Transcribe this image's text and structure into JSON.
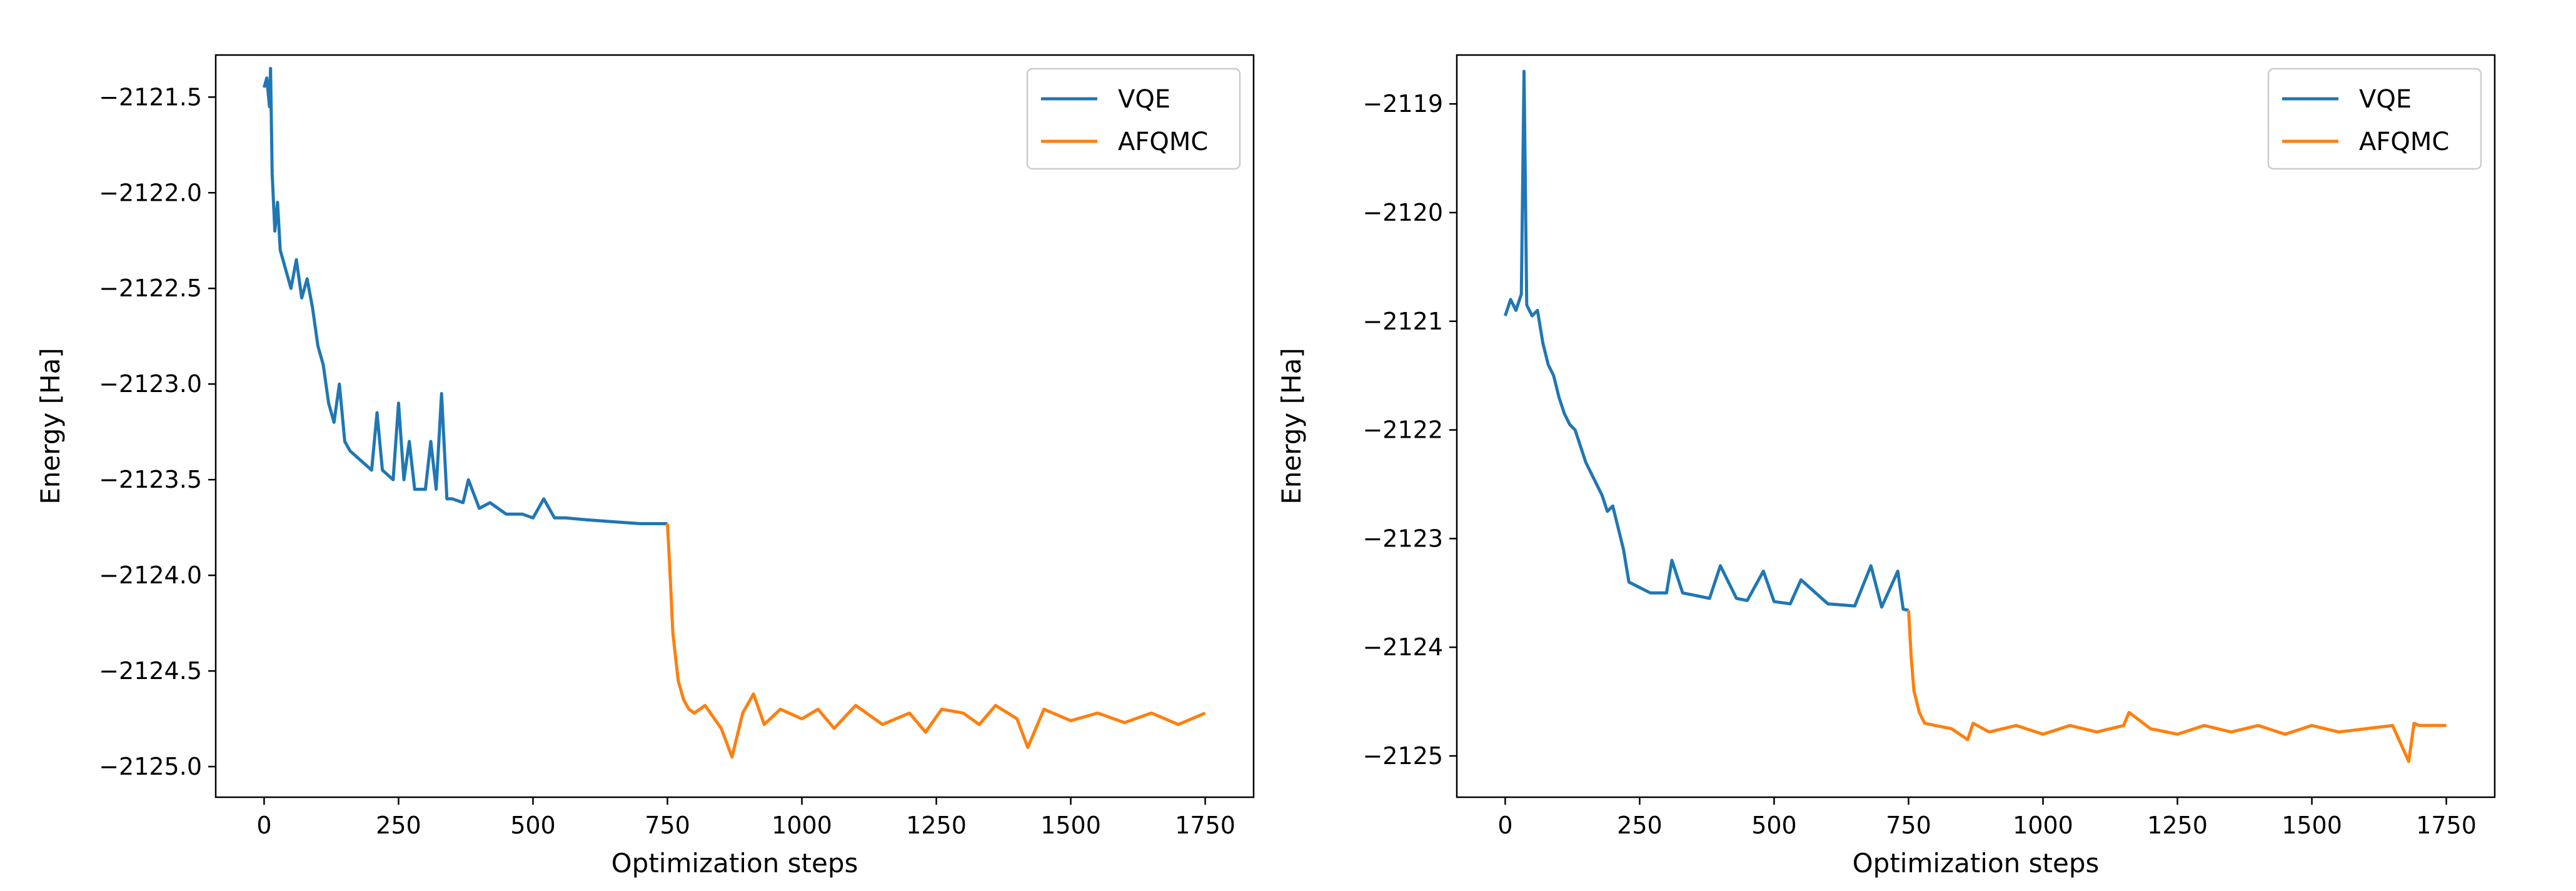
{
  "chart_data": [
    {
      "type": "line",
      "title": "",
      "xlabel": "Optimization steps",
      "ylabel": "Energy [Ha]",
      "xlim": [
        -90,
        1840
      ],
      "ylim": [
        -2125.16,
        -2121.28
      ],
      "xticks": [
        0,
        250,
        500,
        750,
        1000,
        1250,
        1500,
        1750
      ],
      "xtick_labels": [
        "0",
        "250",
        "500",
        "750",
        "1000",
        "1250",
        "1500",
        "1750"
      ],
      "yticks": [
        -2121.5,
        -2122.0,
        -2122.5,
        -2123.0,
        -2123.5,
        -2124.0,
        -2124.5,
        -2125.0
      ],
      "ytick_labels": [
        "−2121.5",
        "−2122.0",
        "−2122.5",
        "−2123.0",
        "−2123.5",
        "−2124.0",
        "−2124.5",
        "−2125.0"
      ],
      "grid": false,
      "legend": {
        "placement": "top-right",
        "entries": [
          "VQE",
          "AFQMC"
        ]
      },
      "series": [
        {
          "name": "VQE",
          "color": "#1f77b4",
          "x": [
            0,
            5,
            10,
            12,
            15,
            20,
            25,
            30,
            40,
            50,
            60,
            70,
            80,
            90,
            100,
            110,
            120,
            130,
            140,
            150,
            160,
            180,
            200,
            210,
            220,
            240,
            250,
            260,
            270,
            280,
            300,
            310,
            320,
            330,
            340,
            350,
            370,
            380,
            400,
            420,
            450,
            480,
            500,
            520,
            540,
            560,
            600,
            650,
            700,
            750
          ],
          "y": [
            -2121.45,
            -2121.4,
            -2121.55,
            -2121.35,
            -2121.9,
            -2122.2,
            -2122.05,
            -2122.3,
            -2122.4,
            -2122.5,
            -2122.35,
            -2122.55,
            -2122.45,
            -2122.6,
            -2122.8,
            -2122.9,
            -2123.1,
            -2123.2,
            -2123.0,
            -2123.3,
            -2123.35,
            -2123.4,
            -2123.45,
            -2123.15,
            -2123.45,
            -2123.5,
            -2123.1,
            -2123.5,
            -2123.3,
            -2123.55,
            -2123.55,
            -2123.3,
            -2123.55,
            -2123.05,
            -2123.6,
            -2123.6,
            -2123.62,
            -2123.5,
            -2123.65,
            -2123.62,
            -2123.68,
            -2123.68,
            -2123.7,
            -2123.6,
            -2123.7,
            -2123.7,
            -2123.71,
            -2123.72,
            -2123.73,
            -2123.73
          ]
        },
        {
          "name": "AFQMC",
          "color": "#ff7f0e",
          "x": [
            750,
            755,
            760,
            770,
            780,
            790,
            800,
            820,
            850,
            870,
            890,
            910,
            930,
            960,
            1000,
            1030,
            1060,
            1100,
            1150,
            1200,
            1230,
            1260,
            1300,
            1330,
            1360,
            1400,
            1420,
            1450,
            1500,
            1550,
            1600,
            1650,
            1700,
            1750
          ],
          "y": [
            -2123.73,
            -2124.0,
            -2124.3,
            -2124.55,
            -2124.65,
            -2124.7,
            -2124.72,
            -2124.68,
            -2124.8,
            -2124.95,
            -2124.72,
            -2124.62,
            -2124.78,
            -2124.7,
            -2124.75,
            -2124.7,
            -2124.8,
            -2124.68,
            -2124.78,
            -2124.72,
            -2124.82,
            -2124.7,
            -2124.72,
            -2124.78,
            -2124.68,
            -2124.75,
            -2124.9,
            -2124.7,
            -2124.76,
            -2124.72,
            -2124.77,
            -2124.72,
            -2124.78,
            -2124.72
          ]
        }
      ]
    },
    {
      "type": "line",
      "title": "",
      "xlabel": "Optimization steps",
      "ylabel": "Energy [Ha]",
      "xlim": [
        -90,
        1840
      ],
      "ylim": [
        -2125.38,
        -2118.55
      ],
      "xticks": [
        0,
        250,
        500,
        750,
        1000,
        1250,
        1500,
        1750
      ],
      "xtick_labels": [
        "0",
        "250",
        "500",
        "750",
        "1000",
        "1250",
        "1500",
        "1750"
      ],
      "yticks": [
        -2119,
        -2120,
        -2121,
        -2122,
        -2123,
        -2124,
        -2125
      ],
      "ytick_labels": [
        "−2119",
        "−2120",
        "−2121",
        "−2122",
        "−2123",
        "−2124",
        "−2125"
      ],
      "grid": false,
      "legend": {
        "placement": "top-right",
        "entries": [
          "VQE",
          "AFQMC"
        ]
      },
      "series": [
        {
          "name": "VQE",
          "color": "#1f77b4",
          "x": [
            0,
            10,
            20,
            30,
            35,
            40,
            50,
            60,
            70,
            80,
            90,
            100,
            110,
            120,
            130,
            140,
            150,
            160,
            170,
            180,
            190,
            200,
            210,
            220,
            230,
            250,
            270,
            300,
            310,
            330,
            350,
            380,
            400,
            430,
            450,
            480,
            500,
            530,
            550,
            600,
            650,
            680,
            700,
            730,
            740,
            750
          ],
          "y": [
            -2120.95,
            -2120.8,
            -2120.9,
            -2120.75,
            -2118.7,
            -2120.85,
            -2120.95,
            -2120.9,
            -2121.2,
            -2121.4,
            -2121.5,
            -2121.7,
            -2121.85,
            -2121.95,
            -2122.0,
            -2122.15,
            -2122.3,
            -2122.4,
            -2122.5,
            -2122.6,
            -2122.75,
            -2122.7,
            -2122.9,
            -2123.1,
            -2123.4,
            -2123.45,
            -2123.5,
            -2123.5,
            -2123.2,
            -2123.5,
            -2123.52,
            -2123.55,
            -2123.25,
            -2123.55,
            -2123.57,
            -2123.3,
            -2123.58,
            -2123.6,
            -2123.38,
            -2123.6,
            -2123.62,
            -2123.25,
            -2123.63,
            -2123.3,
            -2123.65,
            -2123.66
          ]
        },
        {
          "name": "AFQMC",
          "color": "#ff7f0e",
          "x": [
            750,
            755,
            760,
            770,
            780,
            800,
            830,
            860,
            870,
            900,
            950,
            1000,
            1050,
            1100,
            1150,
            1160,
            1200,
            1250,
            1300,
            1350,
            1400,
            1450,
            1500,
            1550,
            1600,
            1650,
            1680,
            1690,
            1700,
            1750
          ],
          "y": [
            -2123.66,
            -2124.1,
            -2124.4,
            -2124.6,
            -2124.7,
            -2124.72,
            -2124.75,
            -2124.85,
            -2124.7,
            -2124.78,
            -2124.72,
            -2124.8,
            -2124.72,
            -2124.78,
            -2124.72,
            -2124.6,
            -2124.75,
            -2124.8,
            -2124.72,
            -2124.78,
            -2124.72,
            -2124.8,
            -2124.72,
            -2124.78,
            -2124.75,
            -2124.72,
            -2125.05,
            -2124.7,
            -2124.72,
            -2124.72
          ]
        }
      ]
    }
  ]
}
